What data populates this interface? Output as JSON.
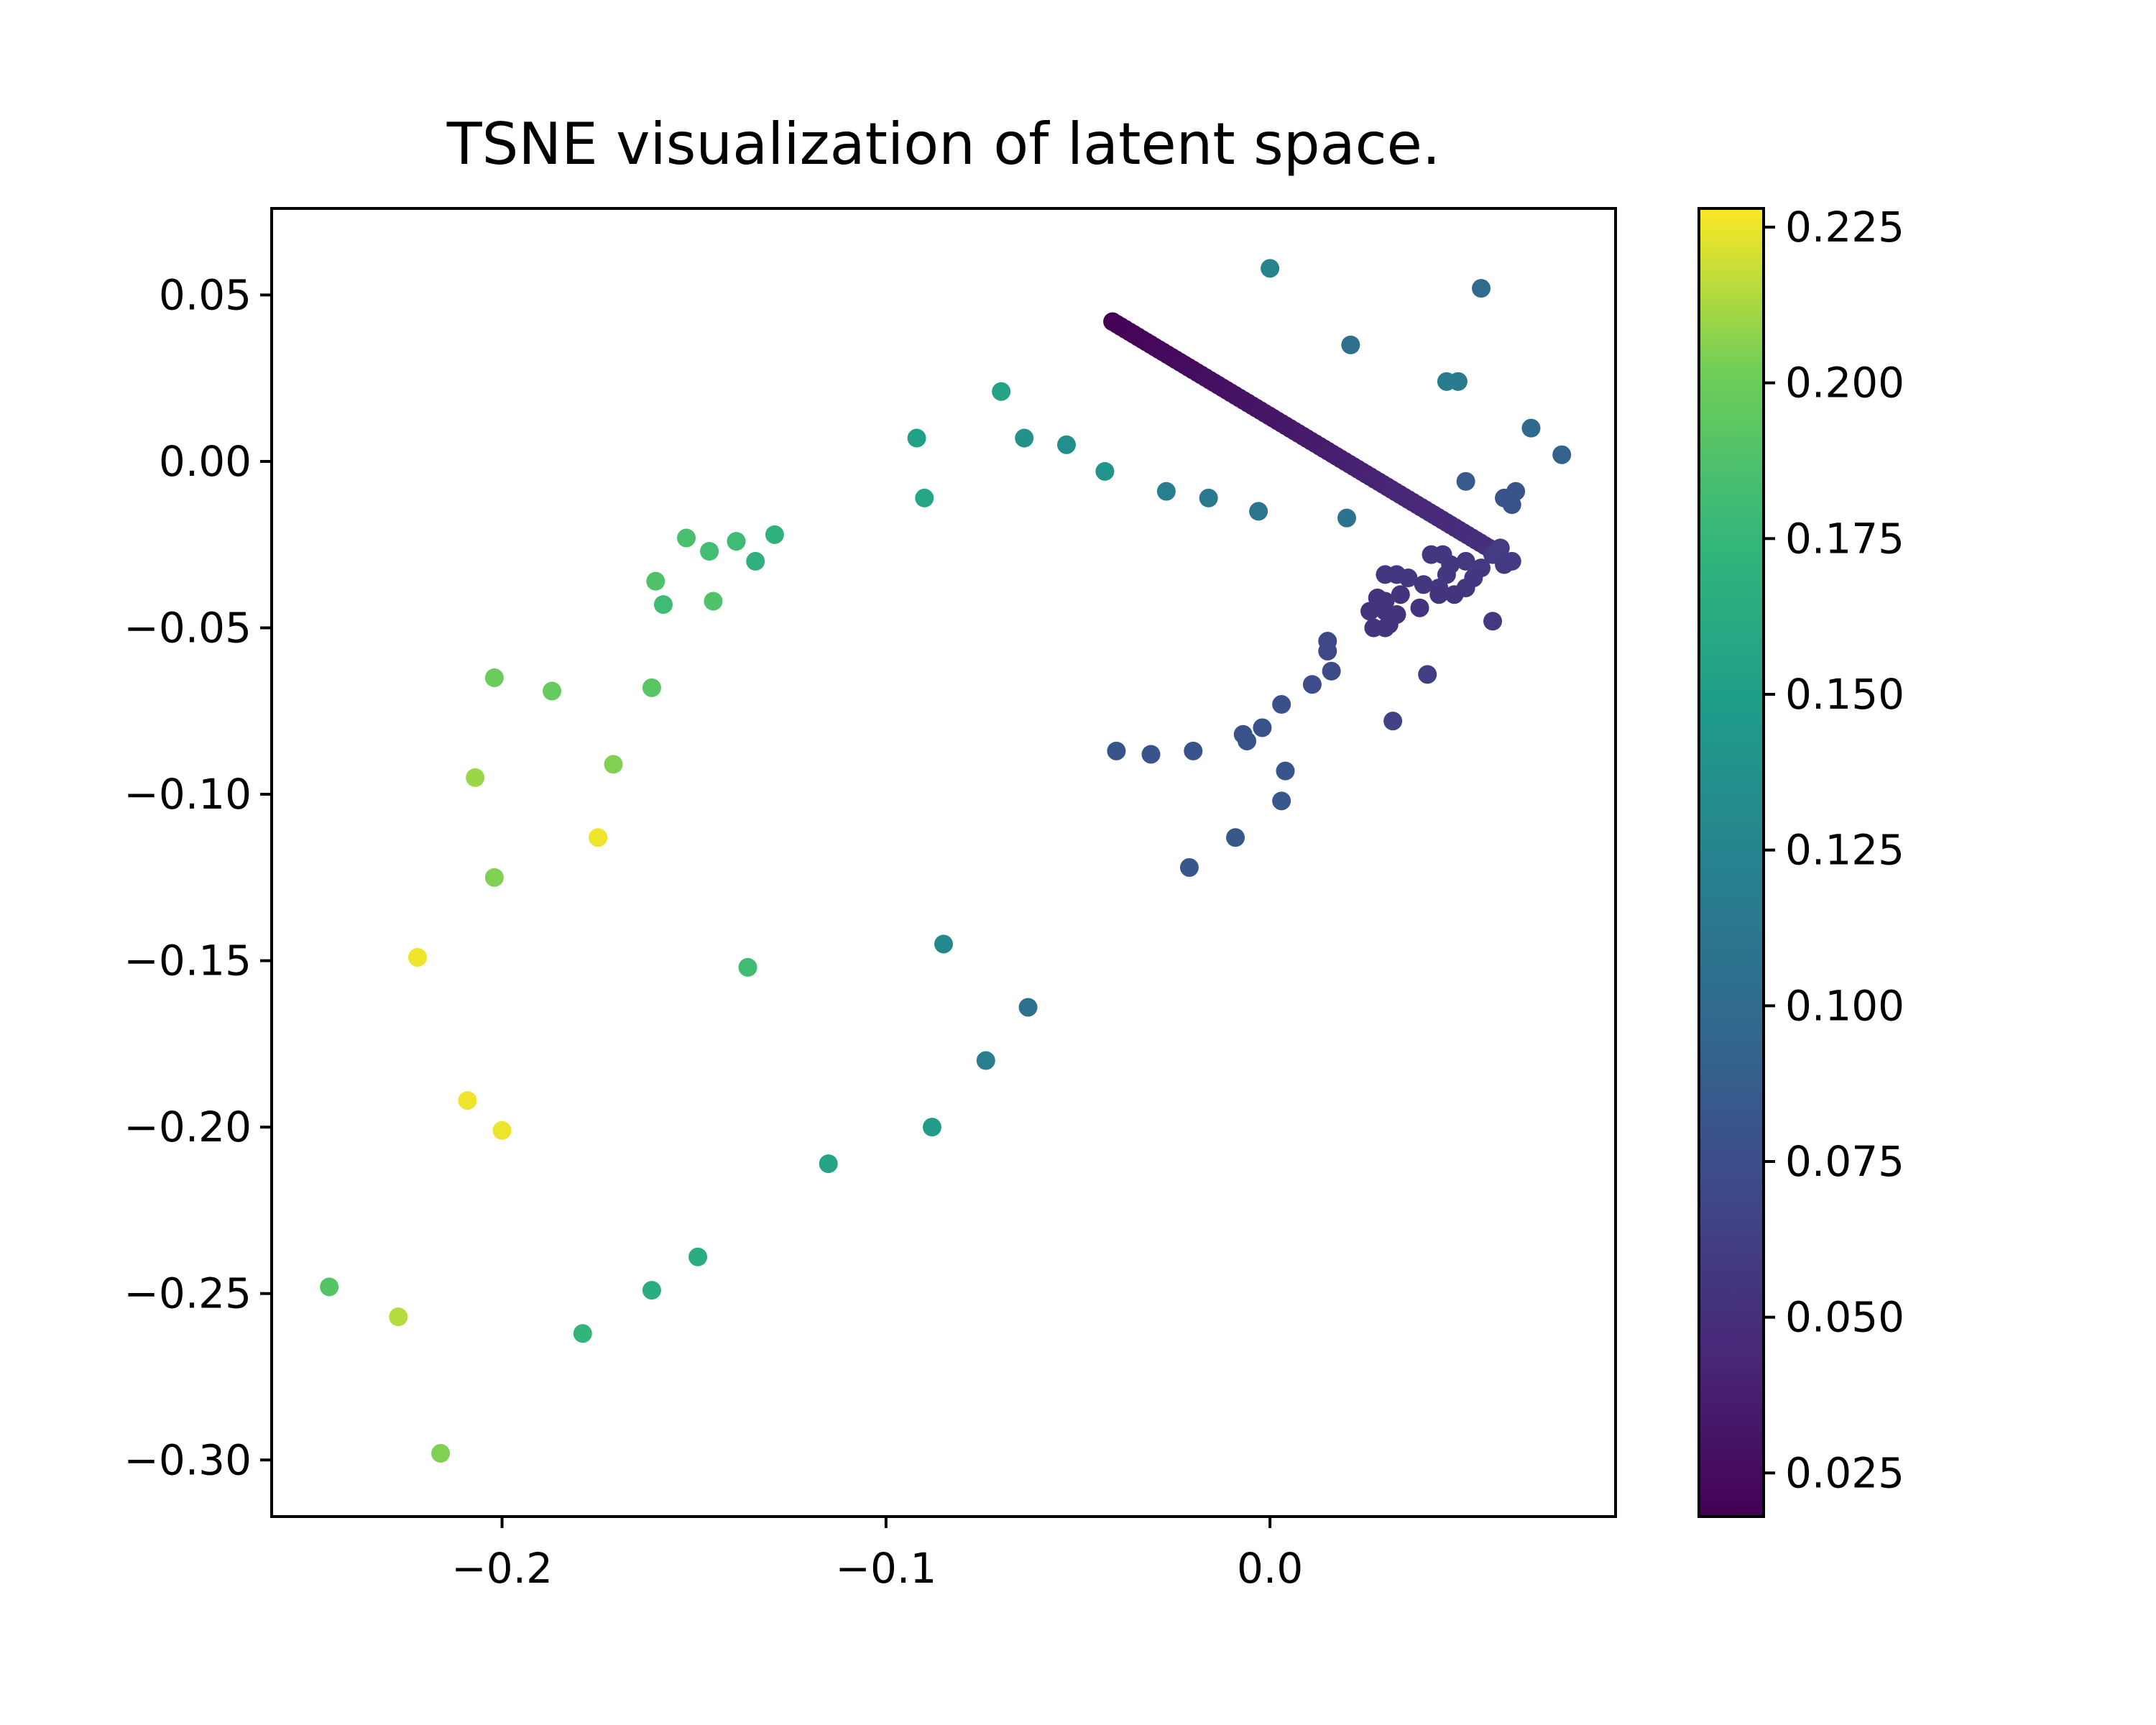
{
  "chart_data": {
    "type": "scatter",
    "title": "TSNE visualization of latent space.",
    "xlabel": "",
    "ylabel": "",
    "xlim": [
      -0.26,
      0.09
    ],
    "ylim": [
      -0.317,
      0.076
    ],
    "xticks": [
      -0.2,
      -0.1,
      0.0
    ],
    "xtick_labels": [
      "−0.2",
      "−0.1",
      "0.0"
    ],
    "yticks": [
      0.05,
      0.0,
      -0.05,
      -0.1,
      -0.15,
      -0.2,
      -0.25,
      -0.3
    ],
    "ytick_labels": [
      "0.05",
      "0.00",
      "−0.05",
      "−0.10",
      "−0.15",
      "−0.20",
      "−0.25",
      "−0.30"
    ],
    "grid": false,
    "colormap": "viridis",
    "colorbar": {
      "range": [
        0.018,
        0.228
      ],
      "ticks": [
        0.025,
        0.05,
        0.075,
        0.1,
        0.125,
        0.15,
        0.175,
        0.2,
        0.225
      ],
      "tick_labels": [
        "0.025",
        "0.050",
        "0.075",
        "0.100",
        "0.125",
        "0.150",
        "0.175",
        "0.200",
        "0.225"
      ]
    },
    "dense_segment": {
      "from": [
        -0.041,
        0.042
      ],
      "to": [
        0.057,
        -0.026
      ],
      "c_from": 0.019,
      "c_to": 0.05,
      "count": 90
    },
    "points": [
      {
        "x": 0.0,
        "y": 0.058,
        "c": 0.125
      },
      {
        "x": 0.055,
        "y": 0.052,
        "c": 0.1
      },
      {
        "x": 0.021,
        "y": 0.035,
        "c": 0.105
      },
      {
        "x": 0.046,
        "y": 0.024,
        "c": 0.117
      },
      {
        "x": 0.049,
        "y": 0.024,
        "c": 0.117
      },
      {
        "x": 0.068,
        "y": 0.01,
        "c": 0.098
      },
      {
        "x": 0.076,
        "y": 0.002,
        "c": 0.092
      },
      {
        "x": 0.051,
        "y": -0.006,
        "c": 0.085
      },
      {
        "x": 0.061,
        "y": -0.011,
        "c": 0.08
      },
      {
        "x": 0.064,
        "y": -0.009,
        "c": 0.08
      },
      {
        "x": 0.063,
        "y": -0.013,
        "c": 0.078
      },
      {
        "x": 0.02,
        "y": -0.017,
        "c": 0.108
      },
      {
        "x": -0.003,
        "y": -0.015,
        "c": 0.11
      },
      {
        "x": -0.016,
        "y": -0.011,
        "c": 0.115
      },
      {
        "x": -0.027,
        "y": -0.009,
        "c": 0.118
      },
      {
        "x": -0.043,
        "y": -0.003,
        "c": 0.14
      },
      {
        "x": -0.053,
        "y": 0.005,
        "c": 0.135
      },
      {
        "x": -0.064,
        "y": 0.007,
        "c": 0.138
      },
      {
        "x": -0.07,
        "y": 0.021,
        "c": 0.155
      },
      {
        "x": -0.092,
        "y": 0.007,
        "c": 0.152
      },
      {
        "x": -0.09,
        "y": -0.011,
        "c": 0.158
      },
      {
        "x": 0.06,
        "y": -0.026,
        "c": 0.06
      },
      {
        "x": 0.063,
        "y": -0.03,
        "c": 0.06
      },
      {
        "x": 0.058,
        "y": -0.028,
        "c": 0.06
      },
      {
        "x": 0.061,
        "y": -0.031,
        "c": 0.058
      },
      {
        "x": 0.055,
        "y": -0.032,
        "c": 0.058
      },
      {
        "x": 0.051,
        "y": -0.03,
        "c": 0.058
      },
      {
        "x": 0.047,
        "y": -0.031,
        "c": 0.057
      },
      {
        "x": 0.045,
        "y": -0.028,
        "c": 0.057
      },
      {
        "x": 0.042,
        "y": -0.028,
        "c": 0.057
      },
      {
        "x": 0.046,
        "y": -0.034,
        "c": 0.056
      },
      {
        "x": 0.053,
        "y": -0.035,
        "c": 0.056
      },
      {
        "x": 0.051,
        "y": -0.038,
        "c": 0.056
      },
      {
        "x": 0.044,
        "y": -0.038,
        "c": 0.055
      },
      {
        "x": 0.04,
        "y": -0.037,
        "c": 0.055
      },
      {
        "x": 0.036,
        "y": -0.035,
        "c": 0.055
      },
      {
        "x": 0.033,
        "y": -0.034,
        "c": 0.055
      },
      {
        "x": 0.03,
        "y": -0.034,
        "c": 0.055
      },
      {
        "x": 0.034,
        "y": -0.04,
        "c": 0.054
      },
      {
        "x": 0.03,
        "y": -0.042,
        "c": 0.054
      },
      {
        "x": 0.028,
        "y": -0.041,
        "c": 0.054
      },
      {
        "x": 0.026,
        "y": -0.045,
        "c": 0.053
      },
      {
        "x": 0.03,
        "y": -0.045,
        "c": 0.053
      },
      {
        "x": 0.033,
        "y": -0.046,
        "c": 0.053
      },
      {
        "x": 0.031,
        "y": -0.049,
        "c": 0.053
      },
      {
        "x": 0.027,
        "y": -0.05,
        "c": 0.053
      },
      {
        "x": 0.03,
        "y": -0.05,
        "c": 0.053
      },
      {
        "x": 0.039,
        "y": -0.044,
        "c": 0.054
      },
      {
        "x": 0.044,
        "y": -0.04,
        "c": 0.054
      },
      {
        "x": 0.048,
        "y": -0.04,
        "c": 0.054
      },
      {
        "x": 0.058,
        "y": -0.048,
        "c": 0.058
      },
      {
        "x": 0.041,
        "y": -0.064,
        "c": 0.062
      },
      {
        "x": 0.032,
        "y": -0.078,
        "c": 0.065
      },
      {
        "x": 0.015,
        "y": -0.054,
        "c": 0.07
      },
      {
        "x": 0.015,
        "y": -0.057,
        "c": 0.07
      },
      {
        "x": 0.016,
        "y": -0.063,
        "c": 0.072
      },
      {
        "x": 0.011,
        "y": -0.067,
        "c": 0.074
      },
      {
        "x": 0.003,
        "y": -0.073,
        "c": 0.076
      },
      {
        "x": -0.002,
        "y": -0.08,
        "c": 0.078
      },
      {
        "x": -0.007,
        "y": -0.082,
        "c": 0.078
      },
      {
        "x": -0.006,
        "y": -0.084,
        "c": 0.078
      },
      {
        "x": -0.02,
        "y": -0.087,
        "c": 0.08
      },
      {
        "x": -0.031,
        "y": -0.088,
        "c": 0.08
      },
      {
        "x": -0.04,
        "y": -0.087,
        "c": 0.08
      },
      {
        "x": 0.004,
        "y": -0.093,
        "c": 0.08
      },
      {
        "x": 0.003,
        "y": -0.102,
        "c": 0.082
      },
      {
        "x": -0.009,
        "y": -0.113,
        "c": 0.082
      },
      {
        "x": -0.021,
        "y": -0.122,
        "c": 0.083
      },
      {
        "x": -0.085,
        "y": -0.145,
        "c": 0.13
      },
      {
        "x": -0.063,
        "y": -0.164,
        "c": 0.105
      },
      {
        "x": -0.074,
        "y": -0.18,
        "c": 0.118
      },
      {
        "x": -0.088,
        "y": -0.2,
        "c": 0.148
      },
      {
        "x": -0.115,
        "y": -0.211,
        "c": 0.155
      },
      {
        "x": -0.149,
        "y": -0.239,
        "c": 0.165
      },
      {
        "x": -0.161,
        "y": -0.249,
        "c": 0.165
      },
      {
        "x": -0.179,
        "y": -0.262,
        "c": 0.172
      },
      {
        "x": -0.136,
        "y": -0.152,
        "c": 0.18
      },
      {
        "x": -0.129,
        "y": -0.022,
        "c": 0.17
      },
      {
        "x": -0.134,
        "y": -0.03,
        "c": 0.168
      },
      {
        "x": -0.139,
        "y": -0.024,
        "c": 0.18
      },
      {
        "x": -0.146,
        "y": -0.027,
        "c": 0.182
      },
      {
        "x": -0.152,
        "y": -0.023,
        "c": 0.185
      },
      {
        "x": -0.16,
        "y": -0.036,
        "c": 0.188
      },
      {
        "x": -0.158,
        "y": -0.043,
        "c": 0.18
      },
      {
        "x": -0.145,
        "y": -0.042,
        "c": 0.188
      },
      {
        "x": -0.161,
        "y": -0.068,
        "c": 0.192
      },
      {
        "x": -0.187,
        "y": -0.069,
        "c": 0.198
      },
      {
        "x": -0.202,
        "y": -0.065,
        "c": 0.2
      },
      {
        "x": -0.171,
        "y": -0.091,
        "c": 0.205
      },
      {
        "x": -0.207,
        "y": -0.095,
        "c": 0.21
      },
      {
        "x": -0.175,
        "y": -0.113,
        "c": 0.225
      },
      {
        "x": -0.202,
        "y": -0.125,
        "c": 0.205
      },
      {
        "x": -0.222,
        "y": -0.149,
        "c": 0.225
      },
      {
        "x": -0.209,
        "y": -0.192,
        "c": 0.225
      },
      {
        "x": -0.2,
        "y": -0.201,
        "c": 0.225
      },
      {
        "x": -0.245,
        "y": -0.248,
        "c": 0.19
      },
      {
        "x": -0.227,
        "y": -0.257,
        "c": 0.215
      },
      {
        "x": -0.216,
        "y": -0.298,
        "c": 0.205
      }
    ]
  }
}
